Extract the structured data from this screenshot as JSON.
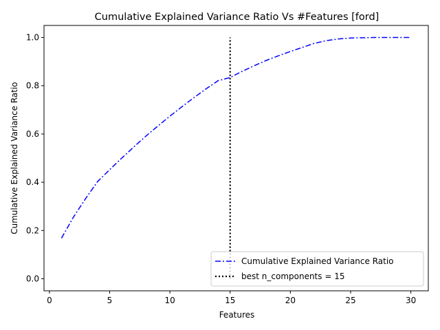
{
  "chart_data": {
    "type": "line",
    "title": "Cumulative Explained Variance Ratio Vs #Features [ford]",
    "xlabel": "Features",
    "ylabel": "Cumulative Explained Variance Ratio",
    "xlim": [
      -0.45,
      31.45
    ],
    "ylim": [
      -0.05,
      1.05
    ],
    "xticks": [
      0,
      5,
      10,
      15,
      20,
      25,
      30
    ],
    "xtick_labels": [
      "0",
      "5",
      "10",
      "15",
      "20",
      "25",
      "30"
    ],
    "yticks": [
      0.0,
      0.2,
      0.4,
      0.6,
      0.8,
      1.0
    ],
    "ytick_labels": [
      "0.0",
      "0.2",
      "0.4",
      "0.6",
      "0.8",
      "1.0"
    ],
    "grid": false,
    "legend_position": "lower-right",
    "series": [
      {
        "name": "Cumulative Explained Variance Ratio",
        "color": "#0000ff",
        "linestyle": "dashdot",
        "x": [
          1,
          2,
          3,
          4,
          5,
          6,
          7,
          8,
          9,
          10,
          11,
          12,
          13,
          14,
          15,
          16,
          17,
          18,
          19,
          20,
          21,
          22,
          23,
          24,
          25,
          26,
          27,
          28,
          29,
          30
        ],
        "y": [
          0.168,
          0.256,
          0.332,
          0.403,
          0.452,
          0.5,
          0.546,
          0.591,
          0.633,
          0.674,
          0.713,
          0.751,
          0.787,
          0.821,
          0.834,
          0.86,
          0.883,
          0.905,
          0.924,
          0.942,
          0.959,
          0.976,
          0.987,
          0.994,
          0.998,
          0.999,
          1.0,
          1.0,
          1.0,
          1.0
        ]
      },
      {
        "name": "best n_components = 15",
        "color": "#000000",
        "linestyle": "dotted",
        "x": [
          15,
          15
        ],
        "y": [
          0.0,
          1.0
        ]
      }
    ]
  }
}
